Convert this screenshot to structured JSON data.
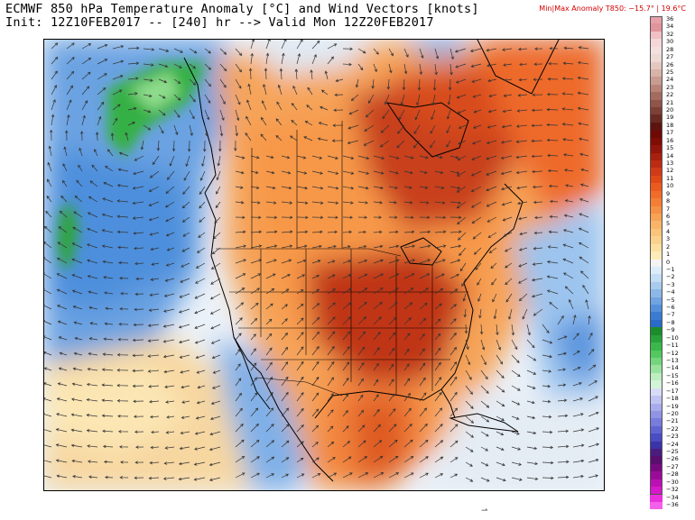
{
  "header": {
    "title_line1": "ECMWF 850 hPa Temperature Anomaly [°C] and Wind Vectors [knots]",
    "title_line2": "Init: 12Z10FEB2017 -- [240] hr --> Valid Mon 12Z20FEB2017",
    "minmax": "Min|Max Anomaly T850: −15.7° |  19.6°C"
  },
  "legend": {
    "levels": [
      {
        "label": "36",
        "color": "#e8a0a8"
      },
      {
        "label": "34",
        "color": "#e0949c"
      },
      {
        "label": "32",
        "color": "#f0c0c4"
      },
      {
        "label": "30",
        "color": "#f6d6d8"
      },
      {
        "label": "28",
        "color": "#f4e0e0"
      },
      {
        "label": "27",
        "color": "#eedad4"
      },
      {
        "label": "26",
        "color": "#e4c8c0"
      },
      {
        "label": "25",
        "color": "#d8b4a8"
      },
      {
        "label": "24",
        "color": "#c89c90"
      },
      {
        "label": "23",
        "color": "#b88478"
      },
      {
        "label": "22",
        "color": "#a46c60"
      },
      {
        "label": "21",
        "color": "#905448"
      },
      {
        "label": "20",
        "color": "#7c4036"
      },
      {
        "label": "19",
        "color": "#6a2a24"
      },
      {
        "label": "18",
        "color": "#5c1410"
      },
      {
        "label": "17",
        "color": "#6e0a06"
      },
      {
        "label": "16",
        "color": "#800c06"
      },
      {
        "label": "15",
        "color": "#92140a"
      },
      {
        "label": "14",
        "color": "#a8200e"
      },
      {
        "label": "13",
        "color": "#bc2c12"
      },
      {
        "label": "12",
        "color": "#d03a16"
      },
      {
        "label": "11",
        "color": "#e04818"
      },
      {
        "label": "10",
        "color": "#ec5a1e"
      },
      {
        "label": "9",
        "color": "#f06c28"
      },
      {
        "label": "8",
        "color": "#f47e34"
      },
      {
        "label": "7",
        "color": "#f69044"
      },
      {
        "label": "6",
        "color": "#f8a256"
      },
      {
        "label": "5",
        "color": "#f9b468"
      },
      {
        "label": "4",
        "color": "#fac47a"
      },
      {
        "label": "3",
        "color": "#fbd28c"
      },
      {
        "label": "2",
        "color": "#fde0a0"
      },
      {
        "label": "1",
        "color": "#feecb8"
      },
      {
        "label": "0",
        "color": "#f4f4f4"
      },
      {
        "label": "−1",
        "color": "#dcecf8"
      },
      {
        "label": "−2",
        "color": "#c4ddf4"
      },
      {
        "label": "−3",
        "color": "#a8cbee"
      },
      {
        "label": "−4",
        "color": "#8cb8e8"
      },
      {
        "label": "−5",
        "color": "#70a4e2"
      },
      {
        "label": "−6",
        "color": "#5490dc"
      },
      {
        "label": "−7",
        "color": "#3a7cd4"
      },
      {
        "label": "−8",
        "color": "#2a6ac8"
      },
      {
        "label": "−9",
        "color": "#1a8c2c"
      },
      {
        "label": "−10",
        "color": "#28a23a"
      },
      {
        "label": "−11",
        "color": "#3ab84a"
      },
      {
        "label": "−12",
        "color": "#52c85e"
      },
      {
        "label": "−13",
        "color": "#74d67c"
      },
      {
        "label": "−14",
        "color": "#98e29e"
      },
      {
        "label": "−15",
        "color": "#bceec0"
      },
      {
        "label": "−16",
        "color": "#d4f4d8"
      },
      {
        "label": "−17",
        "color": "#d8dcf8"
      },
      {
        "label": "−18",
        "color": "#c0c4f2"
      },
      {
        "label": "−19",
        "color": "#a8acec"
      },
      {
        "label": "−20",
        "color": "#9094e4"
      },
      {
        "label": "−21",
        "color": "#787cdc"
      },
      {
        "label": "−22",
        "color": "#6064d2"
      },
      {
        "label": "−23",
        "color": "#4a4cc4"
      },
      {
        "label": "−24",
        "color": "#3a34a8"
      },
      {
        "label": "−25",
        "color": "#4a1c80"
      },
      {
        "label": "−26",
        "color": "#5a0e70"
      },
      {
        "label": "−27",
        "color": "#780a80"
      },
      {
        "label": "−28",
        "color": "#9a0c98"
      },
      {
        "label": "−30",
        "color": "#bc10b4"
      },
      {
        "label": "−32",
        "color": "#d818cc"
      },
      {
        "label": "−34",
        "color": "#ea30dc"
      },
      {
        "label": "−36",
        "color": "#f460ea"
      }
    ]
  },
  "footer": {
    "mark": "⇀"
  }
}
